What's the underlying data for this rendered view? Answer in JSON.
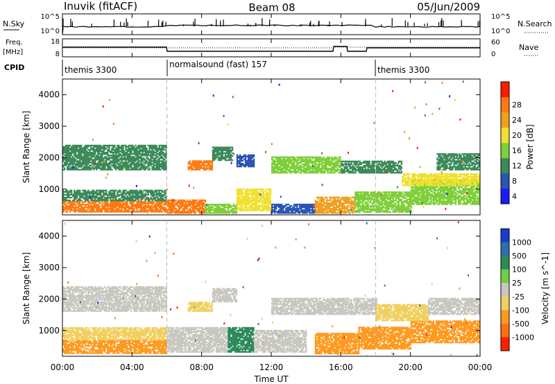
{
  "header": {
    "station": "Inuvik (fitACF)",
    "beam": "Beam 08",
    "date": "05/Jun/2009"
  },
  "nsky_panel": {
    "left_label": "N.Sky",
    "left_ticks": [
      "10^5",
      "10^0"
    ],
    "right_label": "N.Search",
    "right_ticks": [
      "10^5",
      "10^0"
    ]
  },
  "freq_panel": {
    "left_label_line1": "Freq.",
    "left_label_line2": "[MHz]",
    "left_ticks": [
      "18",
      "8"
    ],
    "right_label": "Nave",
    "right_ticks": [
      "60",
      "0"
    ]
  },
  "cpid": {
    "label": "CPID",
    "segments": [
      {
        "start_hour": 0,
        "text": "themis 3300"
      },
      {
        "start_hour": 6,
        "text": "normalsound (fast) 157"
      },
      {
        "start_hour": 18,
        "text": "themis 3300"
      }
    ]
  },
  "x_axis": {
    "label": "Time UT",
    "ticks": [
      "00:00",
      "04:00",
      "08:00",
      "12:00",
      "16:00",
      "20:00",
      "00:00"
    ],
    "range_hours": [
      0,
      24
    ]
  },
  "chart_data": [
    {
      "type": "heatmap",
      "quantity": "Power",
      "ylabel": "Slant Range [km]",
      "yticks": [
        "1000",
        "2000",
        "3000",
        "4000"
      ],
      "ylim": [
        180,
        4500
      ],
      "xlim_hours": [
        0,
        24
      ],
      "colorbar_label": "Power [dB]",
      "colorbar_ticks": [
        "4",
        "8",
        "12",
        "16",
        "20",
        "24",
        "28"
      ],
      "colorbar_colors": [
        "#1a1aff",
        "#2a55b5",
        "#3c8a5a",
        "#7fcf3a",
        "#f0e030",
        "#f0a020",
        "#ff7a10",
        "#ff1a00"
      ],
      "regions": [
        {
          "t0": 0.0,
          "t1": 6.0,
          "r0": 260,
          "r1": 620,
          "level": 28
        },
        {
          "t0": 0.0,
          "t1": 6.0,
          "r0": 620,
          "r1": 950,
          "level": 12
        },
        {
          "t0": 6.0,
          "t1": 8.2,
          "r0": 220,
          "r1": 640,
          "level": 28
        },
        {
          "t0": 8.2,
          "t1": 10.0,
          "r0": 220,
          "r1": 520,
          "level": 16
        },
        {
          "t0": 10.0,
          "t1": 12.0,
          "r0": 300,
          "r1": 1000,
          "level": 20
        },
        {
          "t0": 12.0,
          "t1": 14.5,
          "r0": 220,
          "r1": 500,
          "level": 8
        },
        {
          "t0": 14.5,
          "t1": 16.8,
          "r0": 220,
          "r1": 750,
          "level": 24
        },
        {
          "t0": 16.8,
          "t1": 20.0,
          "r0": 250,
          "r1": 900,
          "level": 16
        },
        {
          "t0": 20.0,
          "t1": 24.0,
          "r0": 500,
          "r1": 1300,
          "level": 16
        },
        {
          "t0": 0.0,
          "t1": 6.0,
          "r0": 1600,
          "r1": 2400,
          "level": 12
        },
        {
          "t0": 7.2,
          "t1": 8.6,
          "r0": 1600,
          "r1": 1900,
          "level": 28
        },
        {
          "t0": 8.6,
          "t1": 9.8,
          "r0": 1900,
          "r1": 2350,
          "level": 12
        },
        {
          "t0": 10.0,
          "t1": 11.0,
          "r0": 1700,
          "r1": 2100,
          "level": 8
        },
        {
          "t0": 12.0,
          "t1": 16.0,
          "r0": 1500,
          "r1": 2000,
          "level": 16
        },
        {
          "t0": 16.0,
          "t1": 19.5,
          "r0": 1500,
          "r1": 1900,
          "level": 12
        },
        {
          "t0": 19.5,
          "t1": 24.0,
          "r0": 1100,
          "r1": 1500,
          "level": 20
        },
        {
          "t0": 21.5,
          "t1": 24.0,
          "r0": 1600,
          "r1": 2100,
          "level": 12
        }
      ]
    },
    {
      "type": "heatmap",
      "quantity": "Velocity",
      "ylabel": "Slant Range [km]",
      "yticks": [
        "1000",
        "2000",
        "3000",
        "4000"
      ],
      "ylim": [
        180,
        4500
      ],
      "xlim_hours": [
        0,
        24
      ],
      "colorbar_label": "Velocity [m s^-1]",
      "colorbar_ticks": [
        "1000",
        "500",
        "100",
        "25",
        "-25",
        "-100",
        "-500",
        "-1000"
      ],
      "colorbar_colors": [
        "#1a3ccc",
        "#2f6fa8",
        "#2e8a5a",
        "#6fd048",
        "#c8c8c0",
        "#f0d060",
        "#ff9a20",
        "#ff7010",
        "#ff2000"
      ],
      "regions": [
        {
          "t0": 0.0,
          "t1": 6.0,
          "r0": 260,
          "r1": 700,
          "level": -500
        },
        {
          "t0": 0.0,
          "t1": 6.0,
          "r0": 700,
          "r1": 1100,
          "level": -100
        },
        {
          "t0": 6.0,
          "t1": 9.5,
          "r0": 300,
          "r1": 1100,
          "level": 0
        },
        {
          "t0": 9.5,
          "t1": 11.0,
          "r0": 300,
          "r1": 1100,
          "level": 100
        },
        {
          "t0": 11.0,
          "t1": 14.0,
          "r0": 300,
          "r1": 1000,
          "level": 0
        },
        {
          "t0": 14.5,
          "t1": 17.0,
          "r0": 250,
          "r1": 900,
          "level": -500
        },
        {
          "t0": 17.0,
          "t1": 20.0,
          "r0": 400,
          "r1": 1100,
          "level": -500
        },
        {
          "t0": 20.0,
          "t1": 24.0,
          "r0": 600,
          "r1": 1300,
          "level": -500
        },
        {
          "t0": 0.0,
          "t1": 6.0,
          "r0": 1600,
          "r1": 2400,
          "level": 0
        },
        {
          "t0": 7.2,
          "t1": 8.6,
          "r0": 1600,
          "r1": 1900,
          "level": -100
        },
        {
          "t0": 8.6,
          "t1": 10.0,
          "r0": 1900,
          "r1": 2350,
          "level": 0
        },
        {
          "t0": 12.0,
          "t1": 18.0,
          "r0": 1500,
          "r1": 2000,
          "level": 0
        },
        {
          "t0": 18.0,
          "t1": 21.0,
          "r0": 1300,
          "r1": 1800,
          "level": -100
        },
        {
          "t0": 21.0,
          "t1": 24.0,
          "r0": 1500,
          "r1": 2000,
          "level": 0
        }
      ]
    }
  ]
}
